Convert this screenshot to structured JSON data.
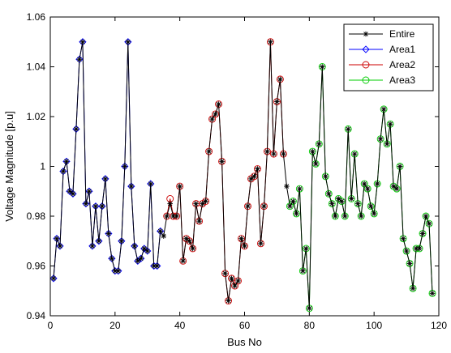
{
  "chart_data": {
    "type": "line",
    "xlabel": "Bus No",
    "ylabel": "Voltage Magnitude [p.u]",
    "xlim": [
      0,
      120
    ],
    "ylim": [
      0.94,
      1.06
    ],
    "xticks": [
      0,
      20,
      40,
      60,
      80,
      100,
      120
    ],
    "yticks": [
      0.94,
      0.96,
      0.98,
      1.0,
      1.02,
      1.04,
      1.06
    ],
    "xtick_labels": [
      "0",
      "20",
      "40",
      "60",
      "80",
      "100",
      "120"
    ],
    "ytick_labels": [
      "0.94",
      "0.96",
      "0.98",
      "1",
      "1.02",
      "1.04",
      "1.06"
    ],
    "grid": false,
    "legend_position": "top-right",
    "series": [
      {
        "name": "Entire",
        "color": "#000000",
        "marker": "asterisk",
        "x": [
          1,
          2,
          3,
          4,
          5,
          6,
          7,
          8,
          9,
          10,
          11,
          12,
          13,
          14,
          15,
          16,
          17,
          18,
          19,
          20,
          21,
          22,
          23,
          24,
          25,
          26,
          27,
          28,
          29,
          30,
          31,
          32,
          33,
          34,
          35,
          36,
          37,
          38,
          39,
          40,
          41,
          42,
          43,
          44,
          45,
          46,
          47,
          48,
          49,
          50,
          51,
          52,
          53,
          54,
          55,
          56,
          57,
          58,
          59,
          60,
          61,
          62,
          63,
          64,
          65,
          66,
          67,
          68,
          69,
          70,
          71,
          72,
          73,
          74,
          75,
          76,
          77,
          78,
          79,
          80,
          81,
          82,
          83,
          84,
          85,
          86,
          87,
          88,
          89,
          90,
          91,
          92,
          93,
          94,
          95,
          96,
          97,
          98,
          99,
          100,
          101,
          102,
          103,
          104,
          105,
          106,
          107,
          108,
          109,
          110,
          111,
          112,
          113,
          114,
          115,
          116,
          117,
          118
        ],
        "y": [
          0.955,
          0.971,
          0.968,
          0.998,
          1.002,
          0.99,
          0.989,
          1.015,
          1.043,
          1.05,
          0.985,
          0.99,
          0.968,
          0.984,
          0.97,
          0.984,
          0.995,
          0.973,
          0.963,
          0.958,
          0.958,
          0.97,
          1.0,
          1.05,
          0.992,
          0.968,
          0.962,
          0.963,
          0.967,
          0.966,
          0.993,
          0.96,
          0.96,
          0.974,
          0.972,
          0.98,
          0.985,
          0.98,
          0.98,
          0.992,
          0.962,
          0.971,
          0.97,
          0.967,
          0.985,
          0.978,
          0.985,
          0.986,
          1.006,
          1.019,
          1.021,
          1.025,
          1.002,
          0.957,
          0.946,
          0.955,
          0.952,
          0.954,
          0.971,
          0.968,
          0.984,
          0.995,
          0.996,
          0.999,
          0.969,
          0.984,
          1.006,
          1.05,
          1.005,
          1.026,
          1.035,
          1.005,
          0.992,
          0.984,
          0.986,
          0.981,
          0.991,
          0.958,
          0.967,
          0.943,
          1.006,
          1.001,
          1.009,
          1.04,
          0.996,
          0.989,
          0.985,
          0.98,
          0.987,
          0.986,
          0.98,
          1.015,
          0.987,
          1.005,
          0.985,
          0.98,
          0.993,
          0.991,
          0.984,
          0.981,
          0.993,
          1.011,
          1.023,
          1.009,
          1.017,
          0.992,
          0.991,
          1.0,
          0.971,
          0.966,
          0.961,
          0.951,
          0.967,
          0.967,
          0.973,
          0.98,
          0.977,
          0.949
        ]
      },
      {
        "name": "Area1",
        "color": "#0000ff",
        "marker": "diamond",
        "x": [
          1,
          2,
          3,
          4,
          5,
          6,
          7,
          8,
          9,
          10,
          11,
          12,
          13,
          14,
          15,
          16,
          17,
          18,
          19,
          20,
          21,
          22,
          23,
          24,
          25,
          26,
          27,
          28,
          29,
          30,
          31,
          32,
          33,
          34
        ],
        "y": [
          0.955,
          0.971,
          0.968,
          0.998,
          1.002,
          0.99,
          0.989,
          1.015,
          1.043,
          1.05,
          0.985,
          0.99,
          0.968,
          0.984,
          0.97,
          0.984,
          0.995,
          0.973,
          0.963,
          0.958,
          0.958,
          0.97,
          1.0,
          1.05,
          0.992,
          0.968,
          0.962,
          0.963,
          0.967,
          0.966,
          0.993,
          0.96,
          0.96,
          0.974
        ]
      },
      {
        "name": "Area2",
        "color": "#cc0000",
        "marker": "circle",
        "x": [
          36,
          37,
          38,
          39,
          40,
          41,
          42,
          43,
          44,
          45,
          46,
          47,
          48,
          49,
          50,
          51,
          52,
          53,
          54,
          55,
          56,
          57,
          58,
          59,
          60,
          61,
          62,
          63,
          64,
          65,
          66,
          67,
          68,
          69,
          70,
          71,
          72
        ],
        "y": [
          0.98,
          0.987,
          0.98,
          0.98,
          0.992,
          0.962,
          0.971,
          0.97,
          0.967,
          0.985,
          0.978,
          0.985,
          0.986,
          1.006,
          1.019,
          1.021,
          1.025,
          1.002,
          0.957,
          0.946,
          0.955,
          0.952,
          0.954,
          0.971,
          0.968,
          0.984,
          0.995,
          0.996,
          0.999,
          0.969,
          0.984,
          1.006,
          1.05,
          1.005,
          1.026,
          1.035,
          1.005
        ]
      },
      {
        "name": "Area3",
        "color": "#00cc00",
        "marker": "circle",
        "x": [
          74,
          75,
          76,
          77,
          78,
          79,
          80,
          81,
          82,
          83,
          84,
          85,
          86,
          87,
          88,
          89,
          90,
          91,
          92,
          93,
          94,
          95,
          96,
          97,
          98,
          99,
          100,
          101,
          102,
          103,
          104,
          105,
          106,
          107,
          108,
          109,
          110,
          111,
          112,
          113,
          114,
          115,
          116,
          117,
          118
        ],
        "y": [
          0.984,
          0.986,
          0.981,
          0.991,
          0.958,
          0.967,
          0.943,
          1.006,
          1.001,
          1.009,
          1.04,
          0.996,
          0.989,
          0.985,
          0.98,
          0.987,
          0.986,
          0.98,
          1.015,
          0.987,
          1.005,
          0.985,
          0.98,
          0.993,
          0.991,
          0.984,
          0.981,
          0.993,
          1.011,
          1.023,
          1.009,
          1.017,
          0.992,
          0.991,
          1.0,
          0.971,
          0.966,
          0.961,
          0.951,
          0.967,
          0.967,
          0.973,
          0.98,
          0.977,
          0.949
        ]
      }
    ]
  }
}
